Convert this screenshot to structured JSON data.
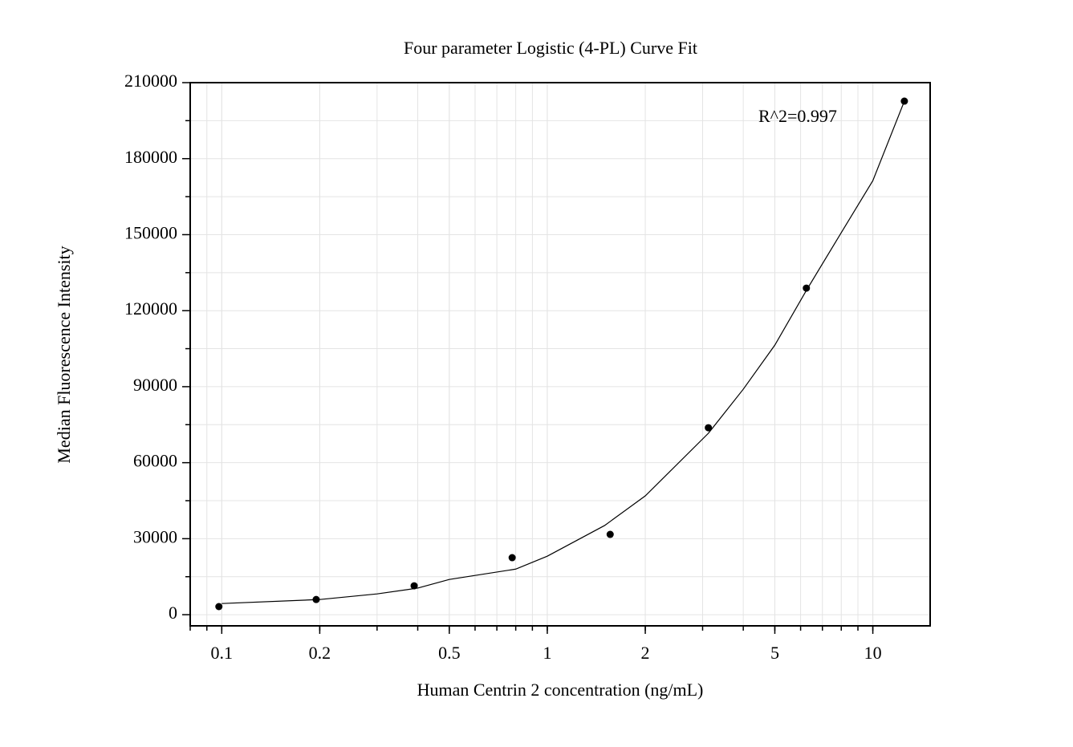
{
  "chart_data": {
    "type": "scatter",
    "title": "Four parameter Logistic (4-PL) Curve Fit",
    "x_label": "Human Centrin 2 concentration (ng/mL)",
    "y_label": "Median Fluorescence Intensity",
    "annotation": "R^2=0.997",
    "xscale": "log",
    "grid": true,
    "xlim": [
      0.08,
      15
    ],
    "ylim": [
      -4400,
      210000
    ],
    "xticks": [
      0.1,
      0.2,
      0.5,
      1,
      2,
      5,
      10
    ],
    "yticks": [
      0,
      30000,
      60000,
      90000,
      120000,
      150000,
      180000,
      210000
    ],
    "series": [
      {
        "type": "scatter",
        "color": "#000000",
        "x": [
          0.098,
          0.195,
          0.39,
          0.78,
          1.56,
          3.125,
          6.25,
          12.5
        ],
        "values": [
          3200,
          6000,
          11400,
          22500,
          31700,
          73800,
          128900,
          202700
        ]
      },
      {
        "type": "line",
        "color": "#000000",
        "x": [
          0.1,
          0.2,
          0.3,
          0.4,
          0.5,
          0.8,
          1,
          1.5,
          2,
          3.125,
          4,
          5,
          6.25,
          8,
          10,
          12.5
        ],
        "values": [
          4400,
          6000,
          8200,
          10500,
          13900,
          18000,
          23100,
          35200,
          46900,
          71600,
          89000,
          106400,
          128000,
          150800,
          171300,
          202700
        ]
      }
    ]
  }
}
